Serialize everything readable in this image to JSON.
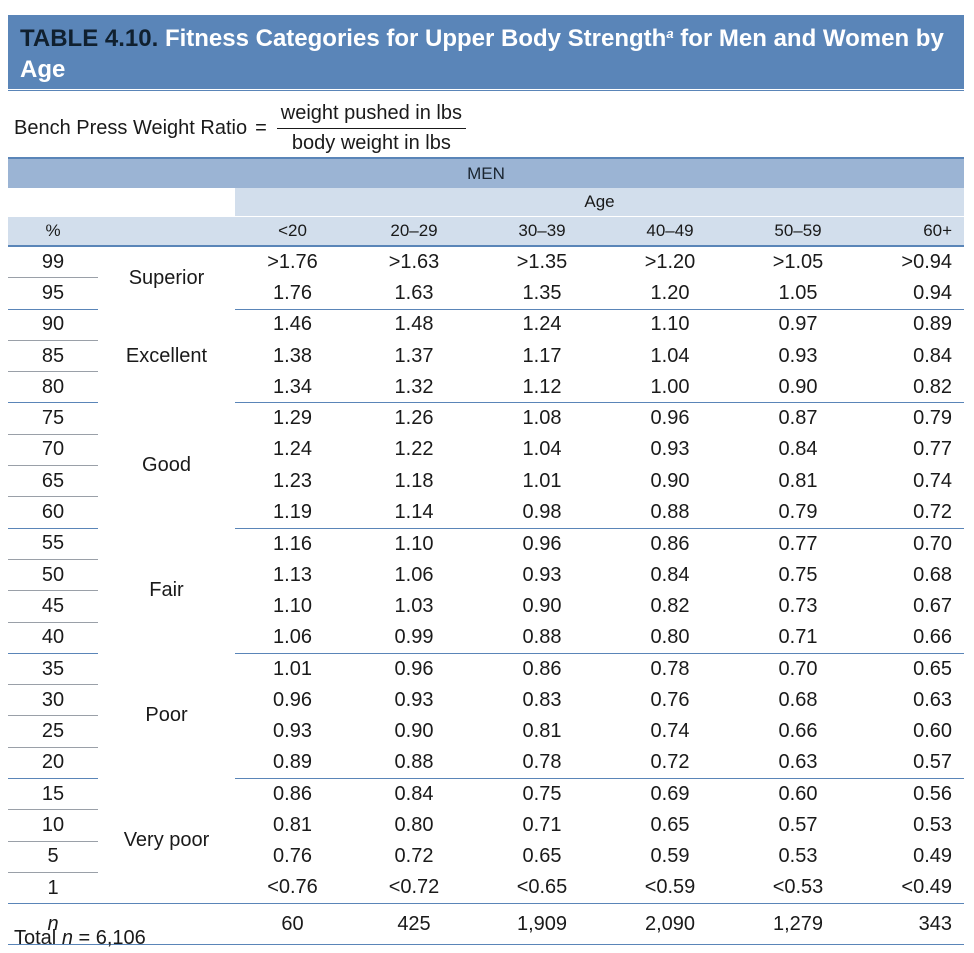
{
  "title": {
    "label": "TABLE 4.10.",
    "text": "Fitness Categories for Upper Body Strength",
    "footnote_mark": "a",
    "text_cont": " for Men and Women by Age"
  },
  "formula": {
    "lhs": "Bench Press Weight Ratio",
    "eq": "=",
    "numerator": "weight pushed in lbs",
    "denominator": "body weight in lbs"
  },
  "group_header": "MEN",
  "age_header": "Age",
  "columns": [
    "%",
    "",
    "<20",
    "20–29",
    "30–39",
    "40–49",
    "50–59",
    "60+"
  ],
  "categories": [
    {
      "name": "Superior",
      "rows": [
        {
          "pct": "99",
          "v": [
            ">1.76",
            ">1.63",
            ">1.35",
            ">1.20",
            ">1.05",
            ">0.94"
          ]
        },
        {
          "pct": "95",
          "v": [
            "1.76",
            "1.63",
            "1.35",
            "1.20",
            "1.05",
            "0.94"
          ]
        }
      ]
    },
    {
      "name": "Excellent",
      "rows": [
        {
          "pct": "90",
          "v": [
            "1.46",
            "1.48",
            "1.24",
            "1.10",
            "0.97",
            "0.89"
          ]
        },
        {
          "pct": "85",
          "v": [
            "1.38",
            "1.37",
            "1.17",
            "1.04",
            "0.93",
            "0.84"
          ]
        },
        {
          "pct": "80",
          "v": [
            "1.34",
            "1.32",
            "1.12",
            "1.00",
            "0.90",
            "0.82"
          ]
        }
      ]
    },
    {
      "name": "Good",
      "rows": [
        {
          "pct": "75",
          "v": [
            "1.29",
            "1.26",
            "1.08",
            "0.96",
            "0.87",
            "0.79"
          ]
        },
        {
          "pct": "70",
          "v": [
            "1.24",
            "1.22",
            "1.04",
            "0.93",
            "0.84",
            "0.77"
          ]
        },
        {
          "pct": "65",
          "v": [
            "1.23",
            "1.18",
            "1.01",
            "0.90",
            "0.81",
            "0.74"
          ]
        },
        {
          "pct": "60",
          "v": [
            "1.19",
            "1.14",
            "0.98",
            "0.88",
            "0.79",
            "0.72"
          ]
        }
      ]
    },
    {
      "name": "Fair",
      "rows": [
        {
          "pct": "55",
          "v": [
            "1.16",
            "1.10",
            "0.96",
            "0.86",
            "0.77",
            "0.70"
          ]
        },
        {
          "pct": "50",
          "v": [
            "1.13",
            "1.06",
            "0.93",
            "0.84",
            "0.75",
            "0.68"
          ]
        },
        {
          "pct": "45",
          "v": [
            "1.10",
            "1.03",
            "0.90",
            "0.82",
            "0.73",
            "0.67"
          ]
        },
        {
          "pct": "40",
          "v": [
            "1.06",
            "0.99",
            "0.88",
            "0.80",
            "0.71",
            "0.66"
          ]
        }
      ]
    },
    {
      "name": "Poor",
      "rows": [
        {
          "pct": "35",
          "v": [
            "1.01",
            "0.96",
            "0.86",
            "0.78",
            "0.70",
            "0.65"
          ]
        },
        {
          "pct": "30",
          "v": [
            "0.96",
            "0.93",
            "0.83",
            "0.76",
            "0.68",
            "0.63"
          ]
        },
        {
          "pct": "25",
          "v": [
            "0.93",
            "0.90",
            "0.81",
            "0.74",
            "0.66",
            "0.60"
          ]
        },
        {
          "pct": "20",
          "v": [
            "0.89",
            "0.88",
            "0.78",
            "0.72",
            "0.63",
            "0.57"
          ]
        }
      ]
    },
    {
      "name": "Very poor",
      "rows": [
        {
          "pct": "15",
          "v": [
            "0.86",
            "0.84",
            "0.75",
            "0.69",
            "0.60",
            "0.56"
          ]
        },
        {
          "pct": "10",
          "v": [
            "0.81",
            "0.80",
            "0.71",
            "0.65",
            "0.57",
            "0.53"
          ]
        },
        {
          "pct": "5",
          "v": [
            "0.76",
            "0.72",
            "0.65",
            "0.59",
            "0.53",
            "0.49"
          ]
        },
        {
          "pct": "1",
          "v": [
            "<0.76",
            "<0.72",
            "<0.65",
            "<0.59",
            "<0.53",
            "<0.49"
          ]
        }
      ]
    }
  ],
  "n_row": {
    "label": "n",
    "values": [
      "60",
      "425",
      "1,909",
      "2,090",
      "1,279",
      "343"
    ]
  },
  "total": {
    "prefix": "Total ",
    "n": "n",
    "suffix": " = 6,106"
  },
  "colors": {
    "title_bg": "#5a85b8",
    "header_band": "#9bb4d4",
    "subheader": "#d2deec",
    "rule": "#5a85b8"
  }
}
